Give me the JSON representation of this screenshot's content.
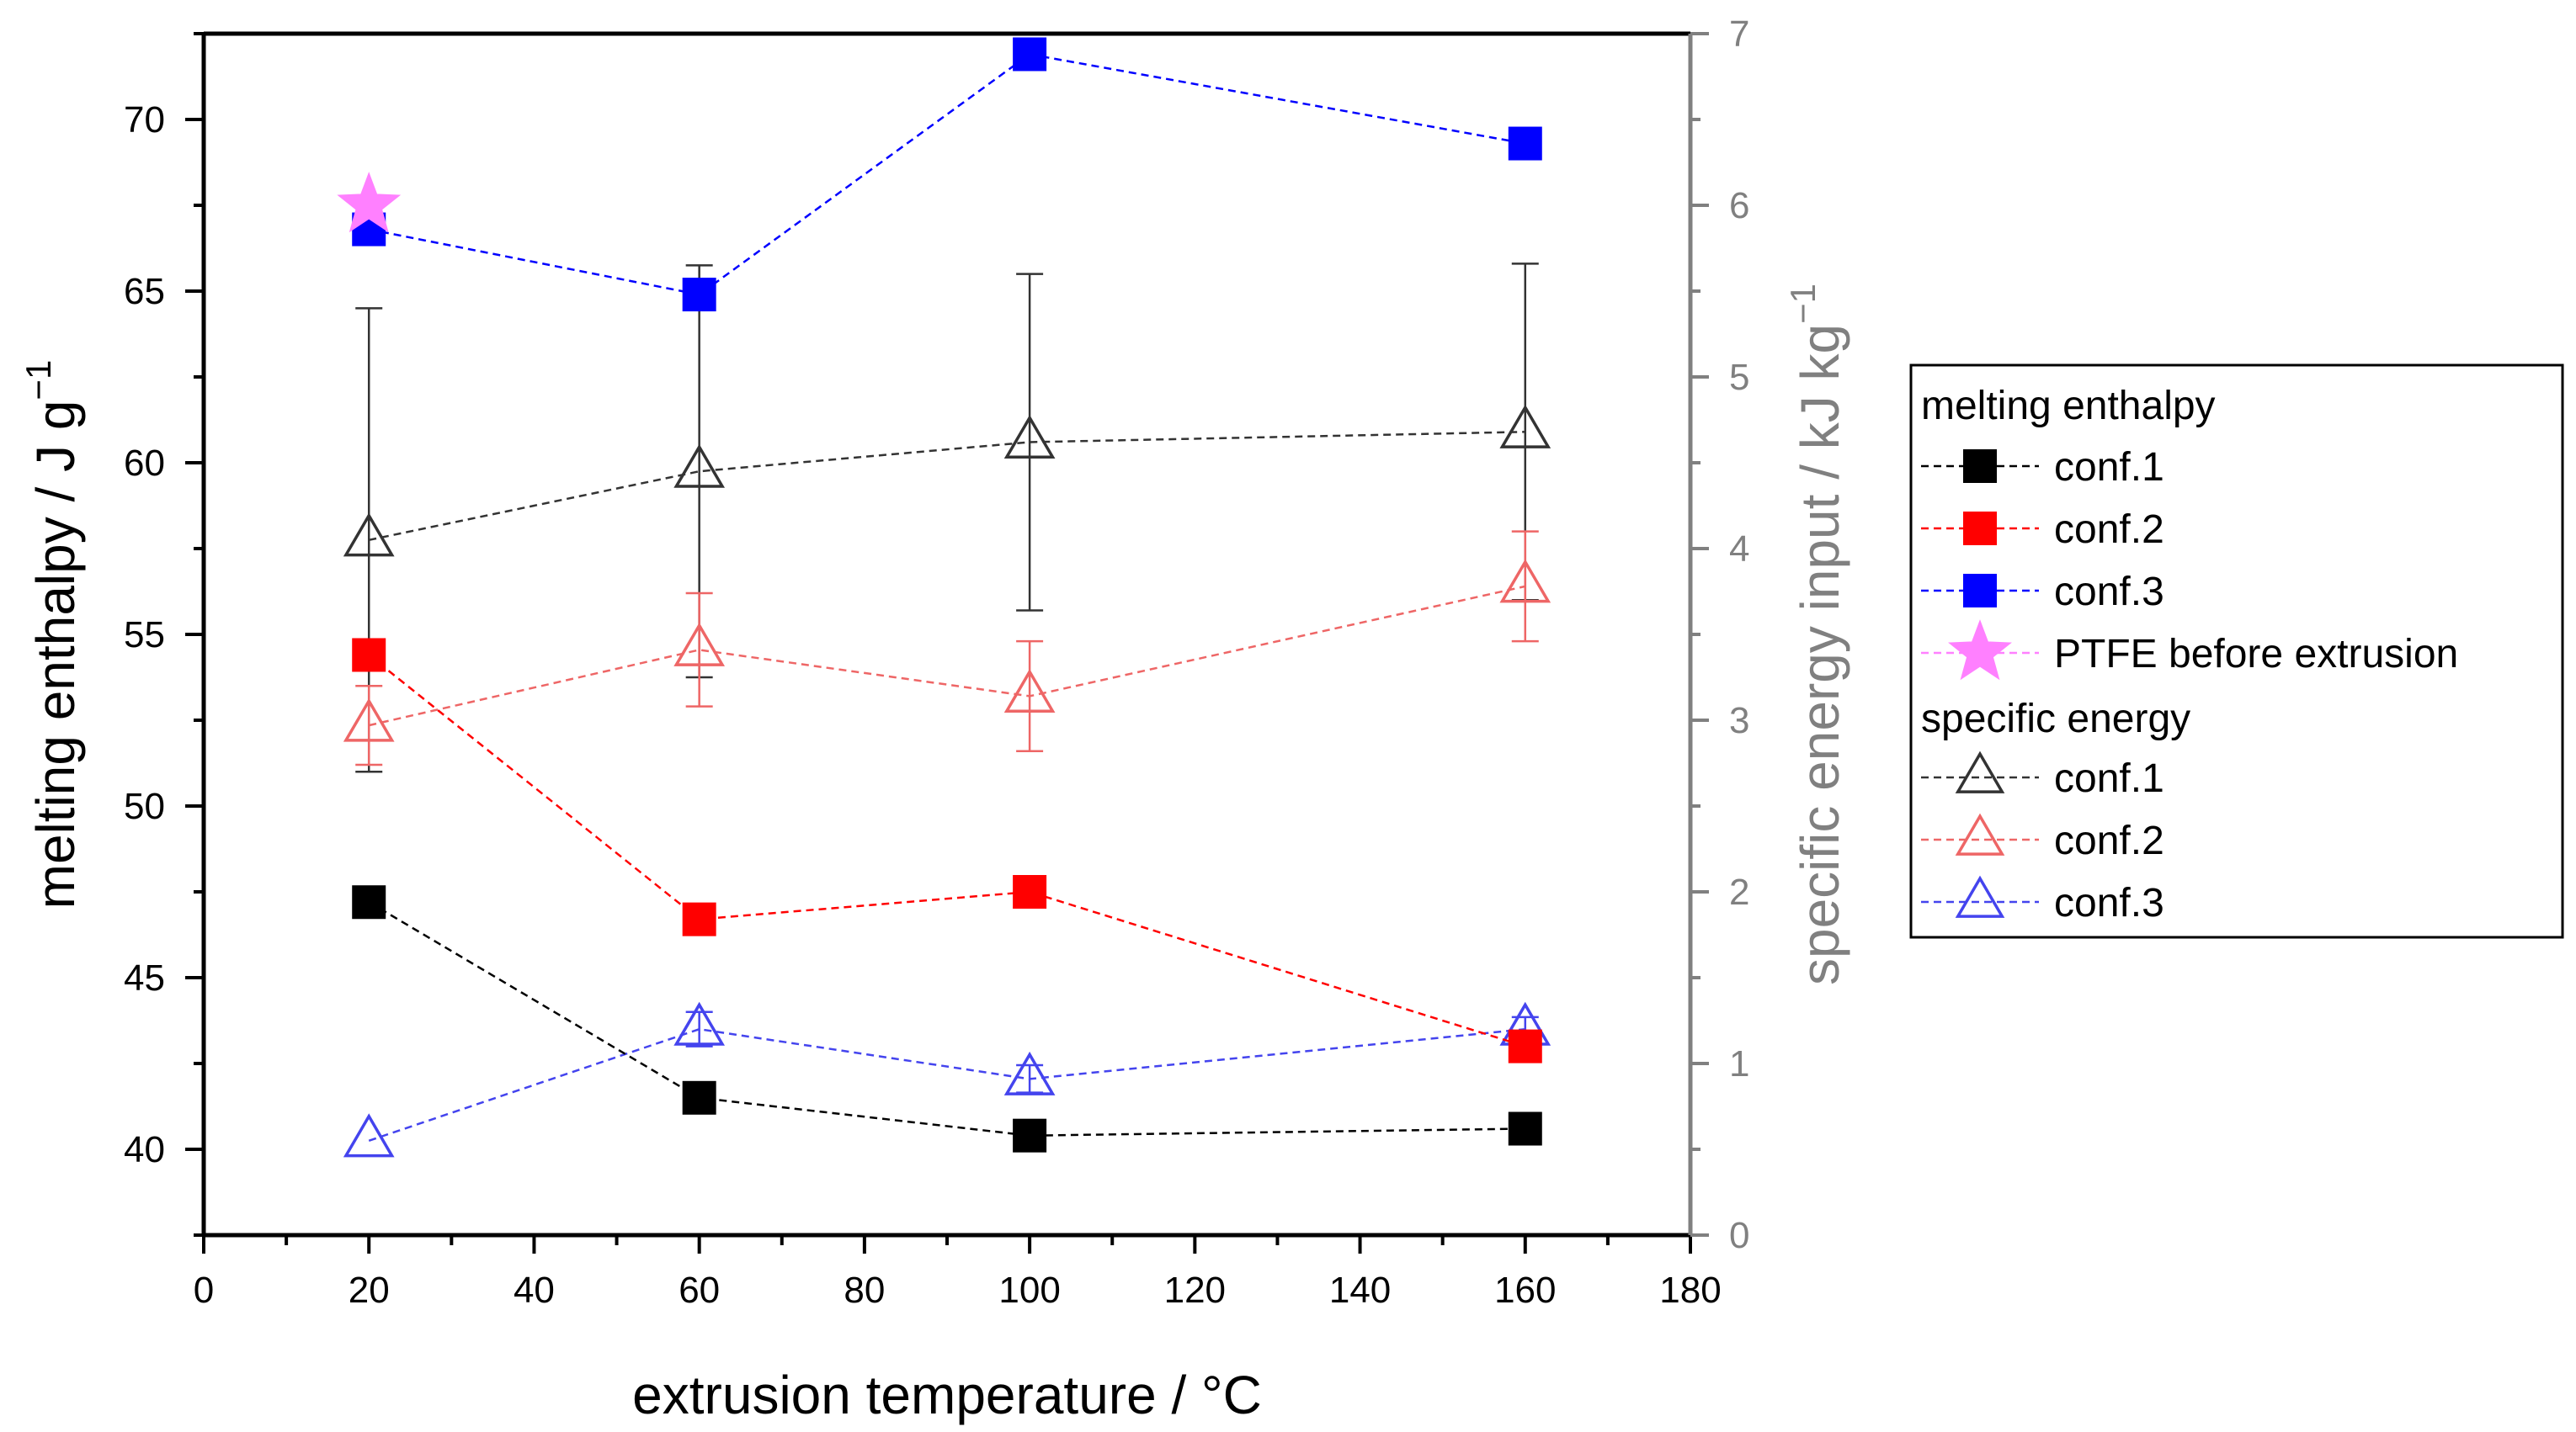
{
  "chart_data": {
    "type": "scatter",
    "x_axis": {
      "label": "extrusion temperature / °C",
      "range": [
        0,
        180
      ],
      "ticks": [
        "0",
        "20",
        "40",
        "60",
        "80",
        "100",
        "120",
        "140",
        "160",
        "180"
      ]
    },
    "y_left": {
      "label": "melting enthalpy / J g",
      "label_exp": "−1",
      "range": [
        37.5,
        72.5
      ],
      "ticks": [
        "40",
        "45",
        "50",
        "55",
        "60",
        "65",
        "70"
      ]
    },
    "y_right": {
      "label": "specific energy input / kJ kg",
      "label_exp": "−1",
      "range": [
        0,
        7
      ],
      "ticks": [
        "0",
        "1",
        "2",
        "3",
        "4",
        "5",
        "6",
        "7"
      ]
    },
    "legend": {
      "group1_title": "melting enthalpy",
      "group2_title": "specific energy"
    },
    "series": [
      {
        "name": "conf.1",
        "group": "melting enthalpy",
        "axis": "left",
        "marker": "square",
        "filled": true,
        "color": "#000000",
        "x": [
          20,
          60,
          100,
          160
        ],
        "y": [
          47.2,
          41.5,
          40.4,
          40.6
        ]
      },
      {
        "name": "conf.2",
        "group": "melting enthalpy",
        "axis": "left",
        "marker": "square",
        "filled": true,
        "color": "#ff0000",
        "x": [
          20,
          60,
          100,
          160
        ],
        "y": [
          54.4,
          46.7,
          47.5,
          43.0
        ]
      },
      {
        "name": "conf.3",
        "group": "melting enthalpy",
        "axis": "left",
        "marker": "square",
        "filled": true,
        "color": "#0000ff",
        "x": [
          20,
          60,
          100,
          160
        ],
        "y": [
          66.8,
          64.9,
          71.9,
          69.3
        ]
      },
      {
        "name": "PTFE before extrusion",
        "group": "melting enthalpy",
        "axis": "left",
        "marker": "star",
        "filled": true,
        "color": "#ff80ff",
        "x": [
          20
        ],
        "y": [
          67.5
        ]
      },
      {
        "name": "conf.1",
        "group": "specific energy",
        "axis": "right",
        "marker": "triangle",
        "filled": false,
        "color": "#333333",
        "x": [
          20,
          60,
          100,
          160
        ],
        "y": [
          4.05,
          4.45,
          4.62,
          4.68
        ],
        "err": [
          1.35,
          1.2,
          0.98,
          0.98
        ]
      },
      {
        "name": "conf.2",
        "group": "specific energy",
        "axis": "right",
        "marker": "triangle",
        "filled": false,
        "color": "#ee6666",
        "x": [
          20,
          60,
          100,
          160
        ],
        "y": [
          2.97,
          3.41,
          3.14,
          3.78
        ],
        "err": [
          0.23,
          0.33,
          0.32,
          0.32
        ]
      },
      {
        "name": "conf.3",
        "group": "specific energy",
        "axis": "right",
        "marker": "triangle",
        "filled": false,
        "color": "#4444ee",
        "x": [
          20,
          60,
          100,
          160
        ],
        "y": [
          0.55,
          1.2,
          0.91,
          1.2
        ],
        "err": [
          0.0,
          0.1,
          0.08,
          0.07
        ]
      }
    ]
  }
}
